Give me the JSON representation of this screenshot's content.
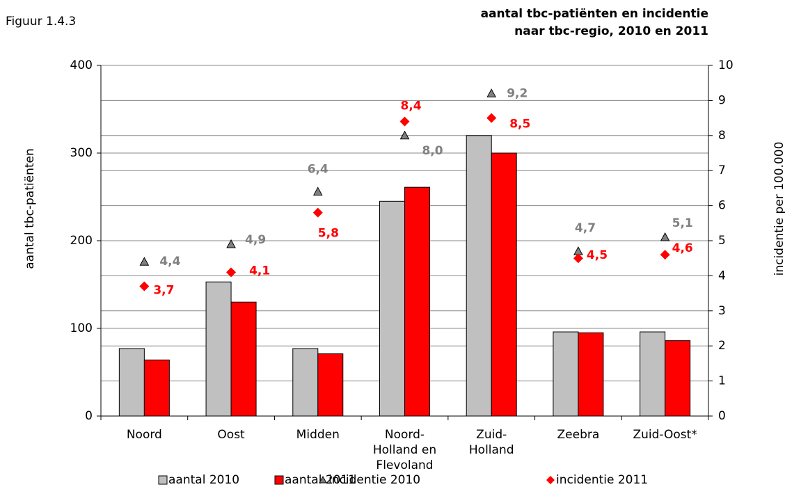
{
  "chart_data": {
    "type": "bar",
    "figure_label": "Figuur 1.4.3",
    "title": [
      "aantal tbc-patiënten en incidentie",
      "naar tbc-regio, 2010 en 2011"
    ],
    "ylabel": "aantal tbc-patiënten",
    "y2label": "incidentie per 100.000",
    "categories": [
      [
        "Noord"
      ],
      [
        "Oost"
      ],
      [
        "Midden"
      ],
      [
        "Noord-",
        "Holland en",
        "Flevoland"
      ],
      [
        "Zuid-",
        "Holland"
      ],
      [
        "Zeebra"
      ],
      [
        "Zuid-Oost*"
      ]
    ],
    "series": [
      {
        "name": "aantal 2010",
        "color": "#c0c0c0",
        "values": [
          77,
          153,
          77,
          245,
          320,
          96,
          96
        ]
      },
      {
        "name": "aantal 2011",
        "color": "#ff0000",
        "values": [
          64,
          130,
          71,
          261,
          300,
          95,
          86
        ]
      },
      {
        "name": "incidentie 2010",
        "color": "#808080",
        "axis": "y2",
        "marker": "triangle",
        "values": [
          4.4,
          4.9,
          6.4,
          8.0,
          9.2,
          4.7,
          5.1
        ],
        "value_labels": [
          "4,4",
          "4,9",
          "6,4",
          "8,0",
          "9,2",
          "4,7",
          "5,1"
        ]
      },
      {
        "name": "incidentie 2011",
        "color": "#ff0000",
        "axis": "y2",
        "marker": "diamond",
        "values": [
          3.7,
          4.1,
          5.8,
          8.4,
          8.5,
          4.5,
          4.6
        ],
        "value_labels": [
          "3,7",
          "4,1",
          "5,8",
          "8,4",
          "8,5",
          "4,5",
          "4,6"
        ]
      }
    ],
    "ylim": [
      0,
      400
    ],
    "yticks": [
      0,
      100,
      200,
      300,
      400
    ],
    "y2lim": [
      0,
      10
    ],
    "y2ticks": [
      0,
      1,
      2,
      3,
      4,
      5,
      6,
      7,
      8,
      9,
      10
    ],
    "grid": true
  }
}
